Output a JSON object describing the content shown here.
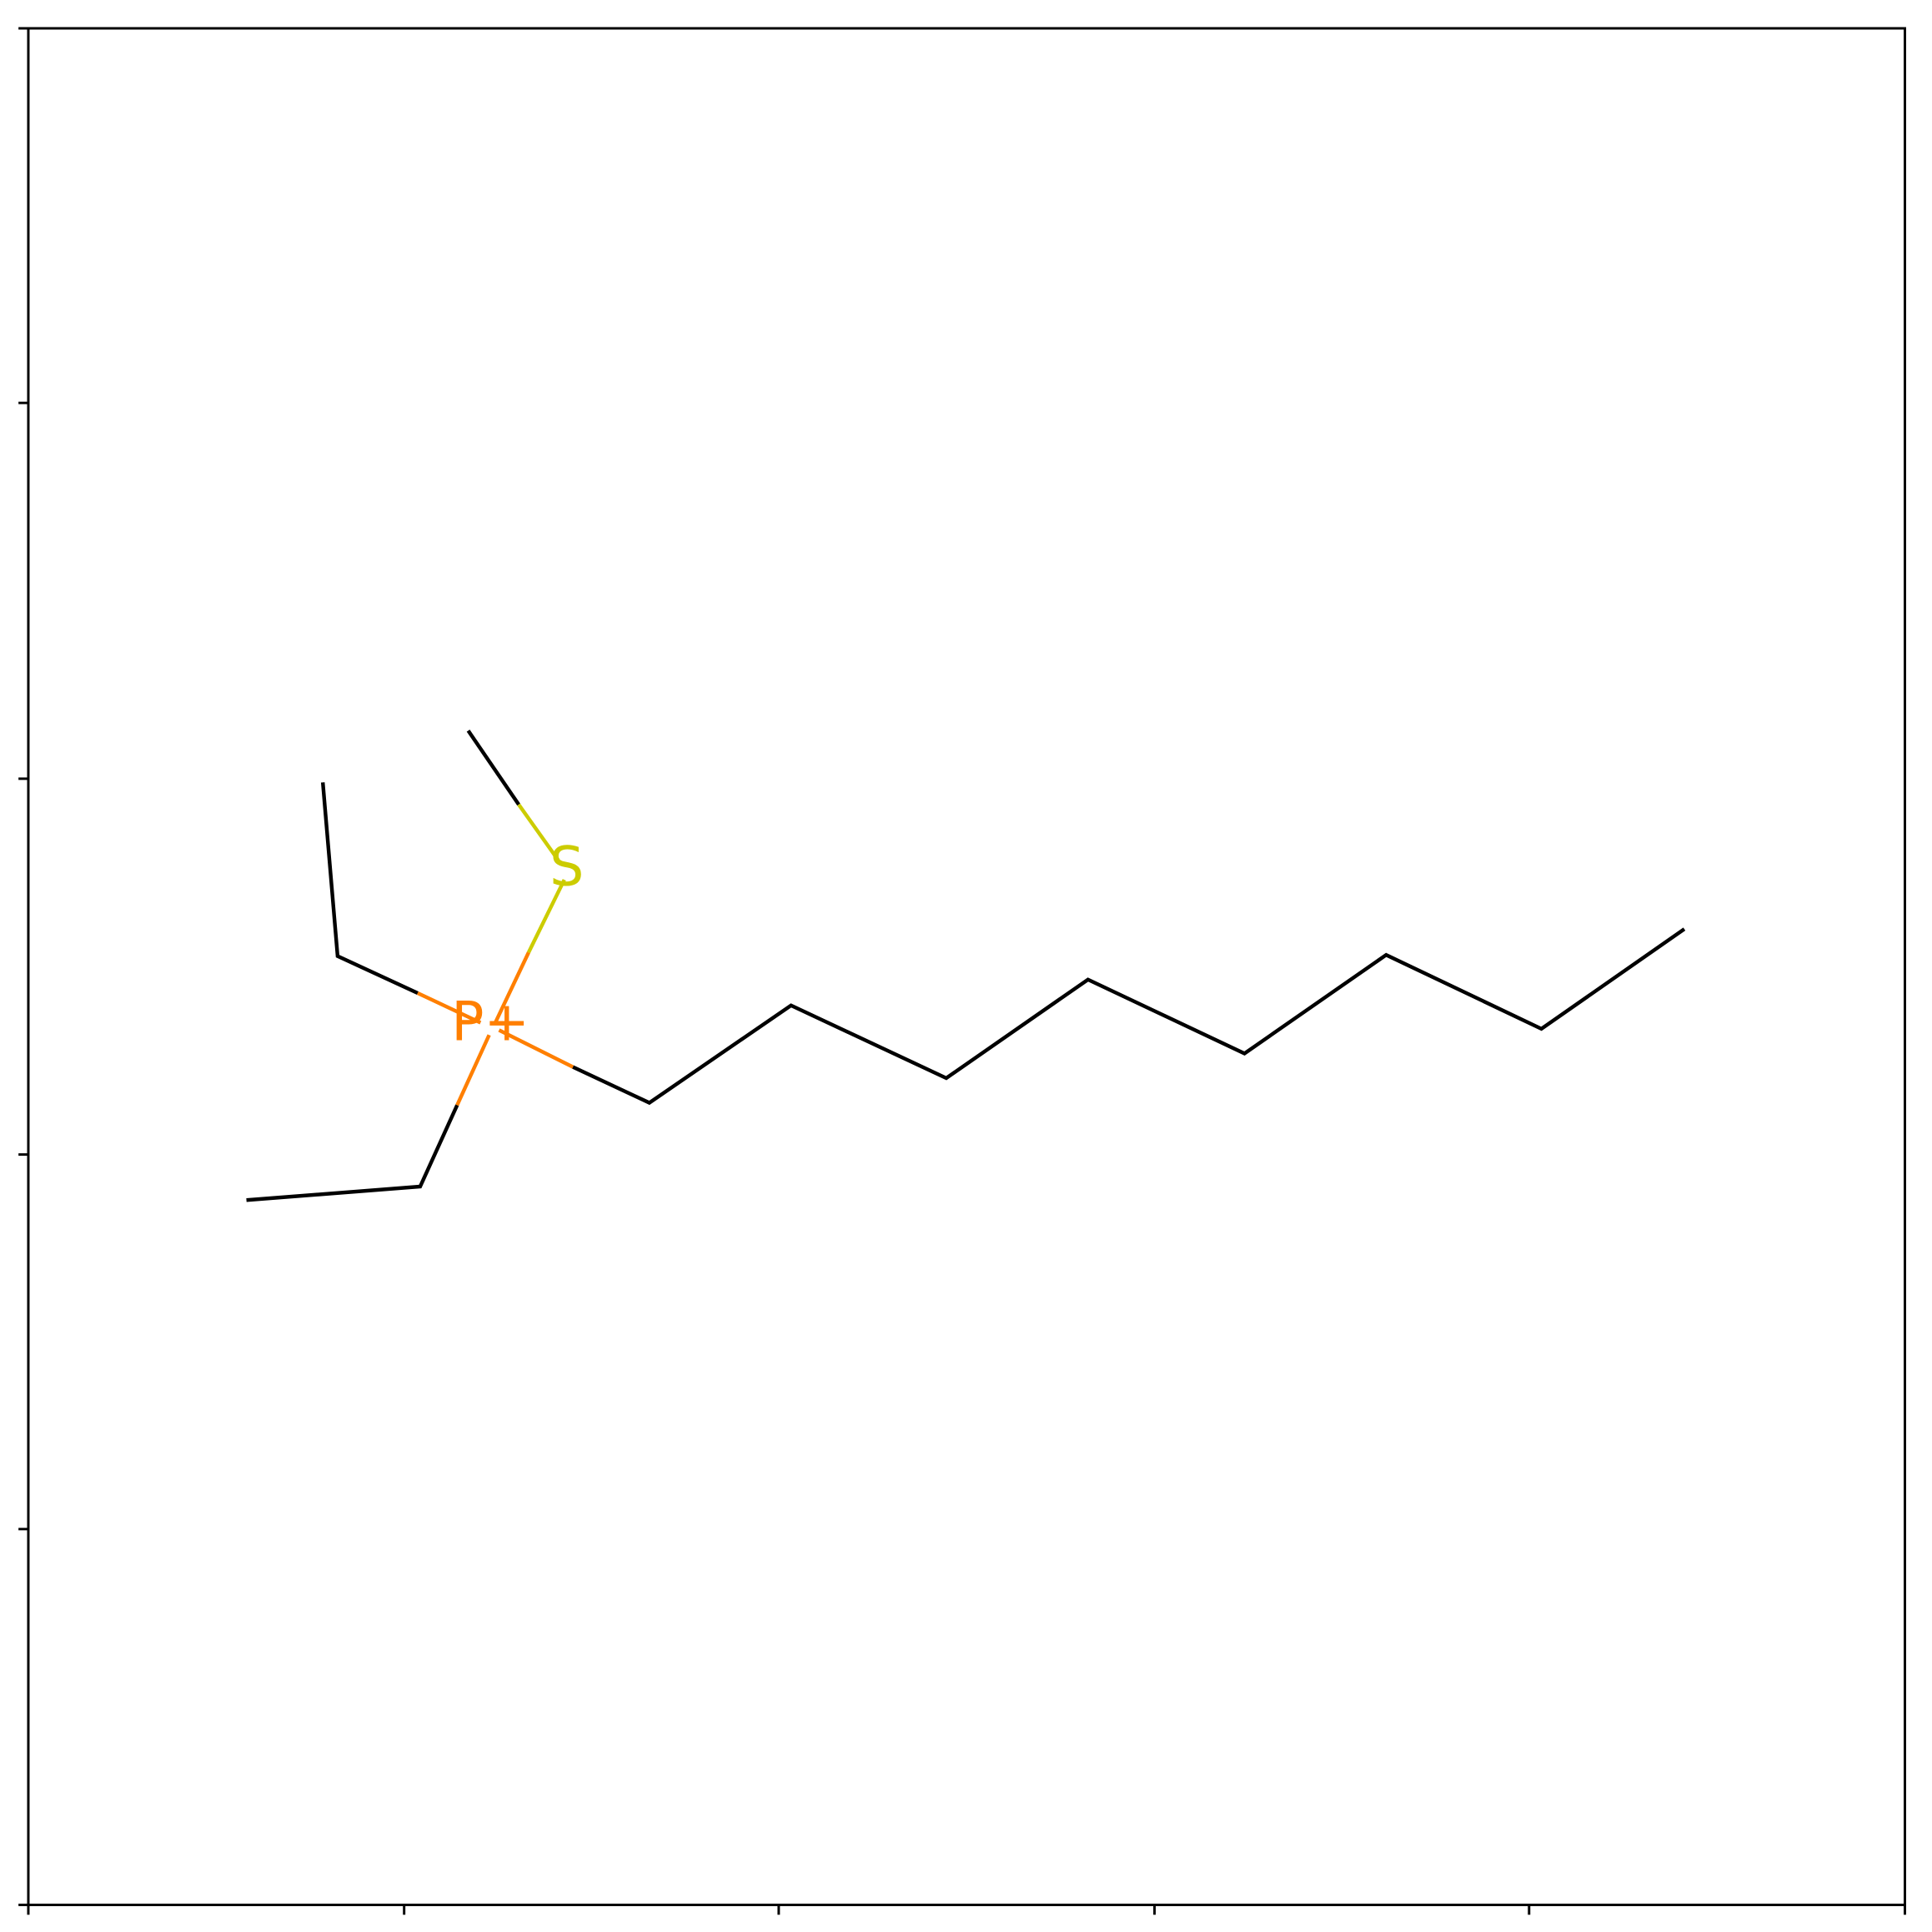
{
  "atoms": [
    {
      "label": "P+"
    },
    {
      "label": "S"
    }
  ]
}
